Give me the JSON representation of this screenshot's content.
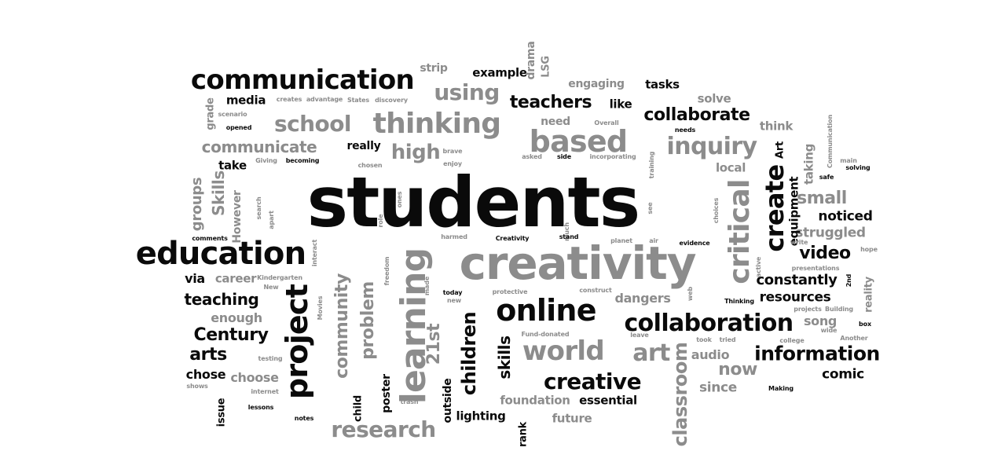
{
  "colors": {
    "background": "#ffffff",
    "dark": "#0a0a0a",
    "gray": "#8c8c8c"
  },
  "words": [
    {
      "text": "students",
      "dark": true
    },
    {
      "text": "creativity",
      "dark": false
    },
    {
      "text": "education",
      "dark": true
    },
    {
      "text": "communication",
      "dark": true
    },
    {
      "text": "thinking",
      "dark": false
    },
    {
      "text": "online",
      "dark": true
    },
    {
      "text": "collaboration",
      "dark": true
    },
    {
      "text": "learning",
      "dark": false
    },
    {
      "text": "project",
      "dark": true
    },
    {
      "text": "based",
      "dark": false
    },
    {
      "text": "school",
      "dark": false
    },
    {
      "text": "create",
      "dark": true
    },
    {
      "text": "critical",
      "dark": false
    },
    {
      "text": "inquiry",
      "dark": false
    },
    {
      "text": "world",
      "dark": false
    },
    {
      "text": "research",
      "dark": false
    },
    {
      "text": "creative",
      "dark": true
    },
    {
      "text": "information",
      "dark": true
    },
    {
      "text": "collaborate",
      "dark": true
    },
    {
      "text": "communicate",
      "dark": false
    },
    {
      "text": "using",
      "dark": false
    },
    {
      "text": "high",
      "dark": false
    },
    {
      "text": "teachers",
      "dark": true
    },
    {
      "text": "community",
      "dark": false
    },
    {
      "text": "problem",
      "dark": false
    },
    {
      "text": "children",
      "dark": true
    },
    {
      "text": "art",
      "dark": false
    },
    {
      "text": "arts",
      "dark": true
    },
    {
      "text": "Century",
      "dark": true
    },
    {
      "text": "teaching",
      "dark": true
    },
    {
      "text": "video",
      "dark": true
    },
    {
      "text": "small",
      "dark": false
    },
    {
      "text": "Skills",
      "dark": false
    },
    {
      "text": "groups",
      "dark": false
    },
    {
      "text": "classroom",
      "dark": false
    },
    {
      "text": "21st",
      "dark": false
    },
    {
      "text": "skills",
      "dark": true
    },
    {
      "text": "now",
      "dark": false
    },
    {
      "text": "constantly",
      "dark": true
    },
    {
      "text": "struggled",
      "dark": false
    },
    {
      "text": "noticed",
      "dark": true
    },
    {
      "text": "resources",
      "dark": true
    },
    {
      "text": "dangers",
      "dark": false
    },
    {
      "text": "audio",
      "dark": false
    },
    {
      "text": "since",
      "dark": false
    },
    {
      "text": "comic",
      "dark": true
    },
    {
      "text": "song",
      "dark": false
    },
    {
      "text": "foundation",
      "dark": false
    },
    {
      "text": "essential",
      "dark": true
    },
    {
      "text": "future",
      "dark": false
    },
    {
      "text": "lighting",
      "dark": true
    },
    {
      "text": "choose",
      "dark": false
    },
    {
      "text": "chose",
      "dark": true
    },
    {
      "text": "enough",
      "dark": false
    },
    {
      "text": "via",
      "dark": true
    },
    {
      "text": "career",
      "dark": false
    },
    {
      "text": "media",
      "dark": true
    },
    {
      "text": "strip",
      "dark": false
    },
    {
      "text": "example",
      "dark": true
    },
    {
      "text": "drama",
      "dark": false
    },
    {
      "text": "LSG",
      "dark": false
    },
    {
      "text": "engaging",
      "dark": false
    },
    {
      "text": "tasks",
      "dark": true
    },
    {
      "text": "solve",
      "dark": false
    },
    {
      "text": "like",
      "dark": true
    },
    {
      "text": "need",
      "dark": false
    },
    {
      "text": "think",
      "dark": false
    },
    {
      "text": "really",
      "dark": true
    },
    {
      "text": "take",
      "dark": true
    },
    {
      "text": "local",
      "dark": false
    },
    {
      "text": "equipment",
      "dark": true
    },
    {
      "text": "taking",
      "dark": false
    },
    {
      "text": "However",
      "dark": false
    },
    {
      "text": "poster",
      "dark": true
    },
    {
      "text": "outside",
      "dark": true
    },
    {
      "text": "rank",
      "dark": true
    },
    {
      "text": "issue",
      "dark": true
    },
    {
      "text": "grade",
      "dark": false
    },
    {
      "text": "reality",
      "dark": false
    },
    {
      "text": "Art",
      "dark": true
    },
    {
      "text": "child",
      "dark": true
    },
    {
      "text": "creates",
      "dark": false
    },
    {
      "text": "advantage",
      "dark": false
    },
    {
      "text": "States",
      "dark": false
    },
    {
      "text": "discovery",
      "dark": false
    },
    {
      "text": "Overall",
      "dark": false
    },
    {
      "text": "scenario",
      "dark": false
    },
    {
      "text": "opened",
      "dark": true
    },
    {
      "text": "Giving",
      "dark": false
    },
    {
      "text": "becoming",
      "dark": true
    },
    {
      "text": "brave",
      "dark": false
    },
    {
      "text": "enjoy",
      "dark": false
    },
    {
      "text": "asked",
      "dark": false
    },
    {
      "text": "side",
      "dark": true
    },
    {
      "text": "incorporating",
      "dark": false
    },
    {
      "text": "training",
      "dark": false
    },
    {
      "text": "needs",
      "dark": true
    },
    {
      "text": "Communication",
      "dark": false
    },
    {
      "text": "main",
      "dark": false
    },
    {
      "text": "safe",
      "dark": true
    },
    {
      "text": "solving",
      "dark": true
    },
    {
      "text": "search",
      "dark": false
    },
    {
      "text": "apart",
      "dark": false
    },
    {
      "text": "chosen",
      "dark": false
    },
    {
      "text": "ones",
      "dark": false
    },
    {
      "text": "role",
      "dark": false
    },
    {
      "text": "much",
      "dark": false
    },
    {
      "text": "see",
      "dark": false
    },
    {
      "text": "choices",
      "dark": false
    },
    {
      "text": "comments",
      "dark": true
    },
    {
      "text": "interact",
      "dark": false
    },
    {
      "text": "Kindergarten",
      "dark": false
    },
    {
      "text": "New",
      "dark": false
    },
    {
      "text": "Movies",
      "dark": false
    },
    {
      "text": "freedom",
      "dark": false
    },
    {
      "text": "made",
      "dark": false
    },
    {
      "text": "harmed",
      "dark": false
    },
    {
      "text": "Creativity",
      "dark": true
    },
    {
      "text": "stand",
      "dark": true
    },
    {
      "text": "planet",
      "dark": false
    },
    {
      "text": "air",
      "dark": false
    },
    {
      "text": "evidence",
      "dark": true
    },
    {
      "text": "write",
      "dark": false
    },
    {
      "text": "hope",
      "dark": false
    },
    {
      "text": "active",
      "dark": false
    },
    {
      "text": "presentations",
      "dark": false
    },
    {
      "text": "2nd",
      "dark": true
    },
    {
      "text": "today",
      "dark": true
    },
    {
      "text": "new",
      "dark": false
    },
    {
      "text": "protective",
      "dark": false
    },
    {
      "text": "construct",
      "dark": false
    },
    {
      "text": "web",
      "dark": false
    },
    {
      "text": "Thinking",
      "dark": true
    },
    {
      "text": "projects",
      "dark": false
    },
    {
      "text": "Building",
      "dark": false
    },
    {
      "text": "Fund-donated",
      "dark": false
    },
    {
      "text": "leave",
      "dark": false
    },
    {
      "text": "took",
      "dark": false
    },
    {
      "text": "tried",
      "dark": false
    },
    {
      "text": "college",
      "dark": false
    },
    {
      "text": "wide",
      "dark": false
    },
    {
      "text": "Another",
      "dark": false
    },
    {
      "text": "box",
      "dark": true
    },
    {
      "text": "testing",
      "dark": false
    },
    {
      "text": "shows",
      "dark": false
    },
    {
      "text": "internet",
      "dark": false
    },
    {
      "text": "lessons",
      "dark": true
    },
    {
      "text": "notes",
      "dark": true
    },
    {
      "text": "trash",
      "dark": false
    },
    {
      "text": "Making",
      "dark": true
    }
  ]
}
